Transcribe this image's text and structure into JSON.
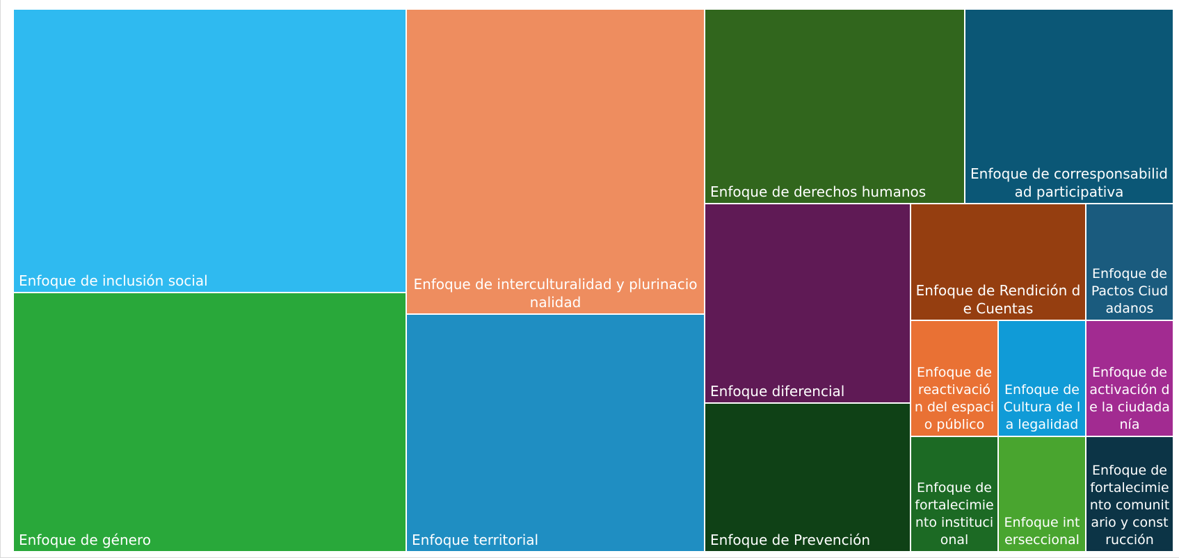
{
  "chart_data": {
    "type": "treemap",
    "title": "",
    "items": [
      {
        "label": "Enfoque de inclusión social",
        "value": 31,
        "color": "#2FBAF0"
      },
      {
        "label": "Enfoque de género",
        "value": 29,
        "color": "#29A83A"
      },
      {
        "label": "Enfoque de interculturalidad y plurinacionalidad",
        "value": 22,
        "color": "#EE8D5F"
      },
      {
        "label": "Enfoque territorial",
        "value": 20,
        "color": "#1F8EC2"
      },
      {
        "label": "Enfoque de derechos humanos",
        "value": 12,
        "color": "#31661D"
      },
      {
        "label": "Enfoque de corresponsabilidad participativa",
        "value": 12,
        "color": "#0B5776"
      },
      {
        "label": "Enfoque diferencial",
        "value": 9,
        "color": "#5F1A55"
      },
      {
        "label": "Enfoque de Prevención",
        "value": 7,
        "color": "#0F4116"
      },
      {
        "label": "Enfoque de Rendición de Cuentas",
        "value": 5,
        "color": "#953E10"
      },
      {
        "label": "Enfoque de Pactos Ciudadanos",
        "value": 3,
        "color": "#1A5B7E"
      },
      {
        "label": "Enfoque de reactivación del espacio público",
        "value": 2.5,
        "color": "#E97134"
      },
      {
        "label": "Enfoque de Cultura de la legalidad",
        "value": 2.5,
        "color": "#109BD7"
      },
      {
        "label": "Enfoque de activación de la ciudadanía",
        "value": 2.5,
        "color": "#A22B91"
      },
      {
        "label": "Enfoque de fortalecimiento institucional",
        "value": 2.5,
        "color": "#1C6A24"
      },
      {
        "label": "Enfoque interseccional",
        "value": 2.5,
        "color": "#49A52F"
      },
      {
        "label": "Enfoque de fortalecimiento comunitario y construcción",
        "value": 2.5,
        "color": "#0C3446"
      }
    ]
  }
}
